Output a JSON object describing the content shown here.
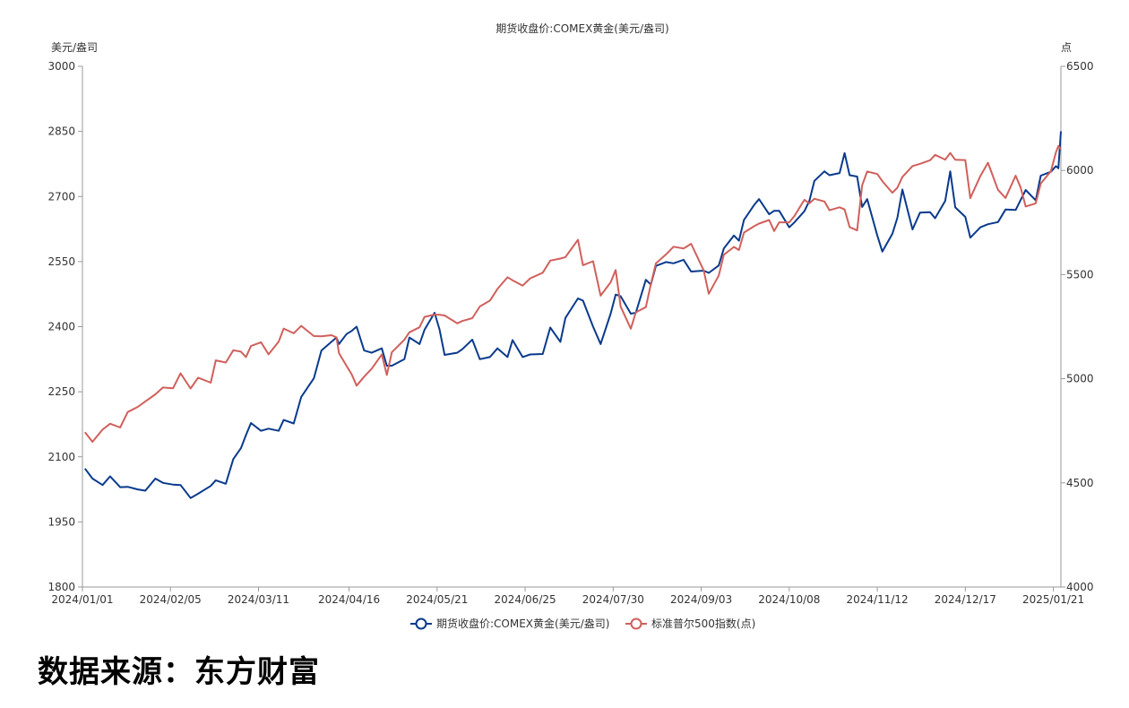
{
  "source_text": "数据来源：东方财富",
  "chart_data": {
    "type": "line",
    "title": "期货收盘价:COMEX黄金(美元/盎司)",
    "y_left_label": "美元/盎司",
    "y_right_label": "点",
    "y_left_range": [
      1800,
      3000
    ],
    "y_left_ticks": [
      "3000",
      "2850",
      "2700",
      "2550",
      "2400",
      "2250",
      "2100",
      "1950",
      "1800"
    ],
    "y_right_range": [
      4000,
      6500
    ],
    "y_right_ticks": [
      "6500",
      "6000",
      "5500",
      "5000",
      "4500",
      "4000"
    ],
    "x_range": [
      "2024-01-01",
      "2025-01-24"
    ],
    "x_ticks": [
      "2024/01/01",
      "2024/02/05",
      "2024/03/11",
      "2024/04/16",
      "2024/05/21",
      "2024/06/25",
      "2024/07/30",
      "2024/09/03",
      "2024/10/08",
      "2024/11/12",
      "2024/12/17",
      "2025/01/21"
    ],
    "grid": false,
    "legend_position": "bottom",
    "series": [
      {
        "name": "期货收盘价:COMEX黄金(美元/盎司)",
        "axis": "left",
        "color": "#0a3a8c",
        "points": [
          [
            "2024-01-02",
            2073
          ],
          [
            "2024-01-05",
            2050
          ],
          [
            "2024-01-09",
            2035
          ],
          [
            "2024-01-12",
            2055
          ],
          [
            "2024-01-16",
            2030
          ],
          [
            "2024-01-19",
            2031
          ],
          [
            "2024-01-23",
            2025
          ],
          [
            "2024-01-26",
            2022
          ],
          [
            "2024-01-30",
            2050
          ],
          [
            "2024-02-02",
            2040
          ],
          [
            "2024-02-06",
            2036
          ],
          [
            "2024-02-09",
            2035
          ],
          [
            "2024-02-13",
            2005
          ],
          [
            "2024-02-16",
            2015
          ],
          [
            "2024-02-21",
            2033
          ],
          [
            "2024-02-23",
            2046
          ],
          [
            "2024-02-27",
            2038
          ],
          [
            "2024-03-01",
            2095
          ],
          [
            "2024-03-04",
            2120
          ],
          [
            "2024-03-06",
            2150
          ],
          [
            "2024-03-08",
            2178
          ],
          [
            "2024-03-12",
            2160
          ],
          [
            "2024-03-15",
            2165
          ],
          [
            "2024-03-19",
            2160
          ],
          [
            "2024-03-21",
            2185
          ],
          [
            "2024-03-25",
            2177
          ],
          [
            "2024-03-28",
            2238
          ],
          [
            "2024-04-02",
            2281
          ],
          [
            "2024-04-05",
            2345
          ],
          [
            "2024-04-09",
            2365
          ],
          [
            "2024-04-11",
            2375
          ],
          [
            "2024-04-12",
            2360
          ],
          [
            "2024-04-15",
            2383
          ],
          [
            "2024-04-17",
            2390
          ],
          [
            "2024-04-19",
            2400
          ],
          [
            "2024-04-22",
            2345
          ],
          [
            "2024-04-25",
            2340
          ],
          [
            "2024-04-29",
            2350
          ],
          [
            "2024-05-01",
            2310
          ],
          [
            "2024-05-03",
            2310
          ],
          [
            "2024-05-08",
            2325
          ],
          [
            "2024-05-10",
            2375
          ],
          [
            "2024-05-14",
            2360
          ],
          [
            "2024-05-16",
            2393
          ],
          [
            "2024-05-20",
            2432
          ],
          [
            "2024-05-22",
            2393
          ],
          [
            "2024-05-24",
            2335
          ],
          [
            "2024-05-29",
            2340
          ],
          [
            "2024-05-31",
            2348
          ],
          [
            "2024-06-04",
            2370
          ],
          [
            "2024-06-07",
            2325
          ],
          [
            "2024-06-11",
            2330
          ],
          [
            "2024-06-14",
            2350
          ],
          [
            "2024-06-18",
            2330
          ],
          [
            "2024-06-20",
            2369
          ],
          [
            "2024-06-24",
            2330
          ],
          [
            "2024-06-27",
            2336
          ],
          [
            "2024-07-02",
            2337
          ],
          [
            "2024-07-05",
            2398
          ],
          [
            "2024-07-09",
            2365
          ],
          [
            "2024-07-11",
            2420
          ],
          [
            "2024-07-16",
            2465
          ],
          [
            "2024-07-18",
            2460
          ],
          [
            "2024-07-22",
            2400
          ],
          [
            "2024-07-25",
            2360
          ],
          [
            "2024-07-29",
            2430
          ],
          [
            "2024-07-31",
            2474
          ],
          [
            "2024-08-02",
            2470
          ],
          [
            "2024-08-06",
            2430
          ],
          [
            "2024-08-08",
            2432
          ],
          [
            "2024-08-12",
            2508
          ],
          [
            "2024-08-14",
            2497
          ],
          [
            "2024-08-16",
            2540
          ],
          [
            "2024-08-20",
            2549
          ],
          [
            "2024-08-23",
            2546
          ],
          [
            "2024-08-27",
            2554
          ],
          [
            "2024-08-30",
            2527
          ],
          [
            "2024-09-04",
            2529
          ],
          [
            "2024-09-06",
            2524
          ],
          [
            "2024-09-10",
            2541
          ],
          [
            "2024-09-12",
            2580
          ],
          [
            "2024-09-16",
            2610
          ],
          [
            "2024-09-18",
            2598
          ],
          [
            "2024-09-20",
            2646
          ],
          [
            "2024-09-24",
            2680
          ],
          [
            "2024-09-26",
            2694
          ],
          [
            "2024-09-30",
            2659
          ],
          [
            "2024-10-02",
            2667
          ],
          [
            "2024-10-04",
            2667
          ],
          [
            "2024-10-08",
            2629
          ],
          [
            "2024-10-10",
            2640
          ],
          [
            "2024-10-14",
            2666
          ],
          [
            "2024-10-16",
            2690
          ],
          [
            "2024-10-18",
            2736
          ],
          [
            "2024-10-22",
            2758
          ],
          [
            "2024-10-24",
            2749
          ],
          [
            "2024-10-28",
            2754
          ],
          [
            "2024-10-30",
            2800
          ],
          [
            "2024-11-01",
            2749
          ],
          [
            "2024-11-04",
            2746
          ],
          [
            "2024-11-06",
            2676
          ],
          [
            "2024-11-08",
            2694
          ],
          [
            "2024-11-12",
            2610
          ],
          [
            "2024-11-14",
            2573
          ],
          [
            "2024-11-18",
            2614
          ],
          [
            "2024-11-20",
            2651
          ],
          [
            "2024-11-22",
            2716
          ],
          [
            "2024-11-26",
            2624
          ],
          [
            "2024-11-29",
            2663
          ],
          [
            "2024-12-03",
            2664
          ],
          [
            "2024-12-05",
            2650
          ],
          [
            "2024-12-09",
            2690
          ],
          [
            "2024-12-11",
            2758
          ],
          [
            "2024-12-13",
            2675
          ],
          [
            "2024-12-17",
            2653
          ],
          [
            "2024-12-19",
            2605
          ],
          [
            "2024-12-23",
            2629
          ],
          [
            "2024-12-26",
            2636
          ],
          [
            "2024-12-30",
            2641
          ],
          [
            "2025-01-02",
            2670
          ],
          [
            "2025-01-06",
            2669
          ],
          [
            "2025-01-08",
            2692
          ],
          [
            "2025-01-10",
            2715
          ],
          [
            "2025-01-14",
            2691
          ],
          [
            "2025-01-16",
            2748
          ],
          [
            "2025-01-20",
            2757
          ],
          [
            "2025-01-22",
            2770
          ],
          [
            "2025-01-23",
            2765
          ],
          [
            "2025-01-24",
            2850
          ]
        ]
      },
      {
        "name": "标准普尔500指数(点)",
        "axis": "right",
        "color": "#d0605c",
        "points": [
          [
            "2024-01-02",
            4743
          ],
          [
            "2024-01-05",
            4697
          ],
          [
            "2024-01-09",
            4756
          ],
          [
            "2024-01-12",
            4784
          ],
          [
            "2024-01-16",
            4766
          ],
          [
            "2024-01-19",
            4840
          ],
          [
            "2024-01-23",
            4865
          ],
          [
            "2024-01-26",
            4891
          ],
          [
            "2024-01-30",
            4925
          ],
          [
            "2024-02-02",
            4958
          ],
          [
            "2024-02-06",
            4954
          ],
          [
            "2024-02-09",
            5026
          ],
          [
            "2024-02-13",
            4953
          ],
          [
            "2024-02-16",
            5005
          ],
          [
            "2024-02-21",
            4981
          ],
          [
            "2024-02-23",
            5088
          ],
          [
            "2024-02-27",
            5078
          ],
          [
            "2024-03-01",
            5137
          ],
          [
            "2024-03-04",
            5130
          ],
          [
            "2024-03-06",
            5104
          ],
          [
            "2024-03-08",
            5157
          ],
          [
            "2024-03-12",
            5175
          ],
          [
            "2024-03-15",
            5117
          ],
          [
            "2024-03-19",
            5178
          ],
          [
            "2024-03-21",
            5241
          ],
          [
            "2024-03-25",
            5218
          ],
          [
            "2024-03-28",
            5254
          ],
          [
            "2024-04-02",
            5205
          ],
          [
            "2024-04-05",
            5204
          ],
          [
            "2024-04-09",
            5209
          ],
          [
            "2024-04-11",
            5199
          ],
          [
            "2024-04-12",
            5123
          ],
          [
            "2024-04-15",
            5061
          ],
          [
            "2024-04-17",
            5022
          ],
          [
            "2024-04-19",
            4967
          ],
          [
            "2024-04-22",
            5010
          ],
          [
            "2024-04-25",
            5048
          ],
          [
            "2024-04-29",
            5116
          ],
          [
            "2024-05-01",
            5018
          ],
          [
            "2024-05-03",
            5127
          ],
          [
            "2024-05-08",
            5187
          ],
          [
            "2024-05-10",
            5223
          ],
          [
            "2024-05-14",
            5247
          ],
          [
            "2024-05-16",
            5297
          ],
          [
            "2024-05-20",
            5308
          ],
          [
            "2024-05-22",
            5307
          ],
          [
            "2024-05-24",
            5304
          ],
          [
            "2024-05-29",
            5266
          ],
          [
            "2024-05-31",
            5277
          ],
          [
            "2024-06-04",
            5291
          ],
          [
            "2024-06-07",
            5347
          ],
          [
            "2024-06-11",
            5375
          ],
          [
            "2024-06-14",
            5431
          ],
          [
            "2024-06-18",
            5487
          ],
          [
            "2024-06-20",
            5473
          ],
          [
            "2024-06-24",
            5447
          ],
          [
            "2024-06-27",
            5482
          ],
          [
            "2024-07-02",
            5509
          ],
          [
            "2024-07-05",
            5567
          ],
          [
            "2024-07-09",
            5577
          ],
          [
            "2024-07-11",
            5584
          ],
          [
            "2024-07-16",
            5667
          ],
          [
            "2024-07-18",
            5545
          ],
          [
            "2024-07-22",
            5564
          ],
          [
            "2024-07-25",
            5399
          ],
          [
            "2024-07-29",
            5463
          ],
          [
            "2024-07-31",
            5522
          ],
          [
            "2024-08-02",
            5346
          ],
          [
            "2024-08-06",
            5240
          ],
          [
            "2024-08-08",
            5319
          ],
          [
            "2024-08-12",
            5344
          ],
          [
            "2024-08-14",
            5455
          ],
          [
            "2024-08-16",
            5554
          ],
          [
            "2024-08-20",
            5597
          ],
          [
            "2024-08-23",
            5634
          ],
          [
            "2024-08-27",
            5625
          ],
          [
            "2024-08-30",
            5648
          ],
          [
            "2024-09-04",
            5520
          ],
          [
            "2024-09-06",
            5408
          ],
          [
            "2024-09-10",
            5496
          ],
          [
            "2024-09-12",
            5595
          ],
          [
            "2024-09-16",
            5633
          ],
          [
            "2024-09-18",
            5618
          ],
          [
            "2024-09-20",
            5702
          ],
          [
            "2024-09-24",
            5732
          ],
          [
            "2024-09-26",
            5745
          ],
          [
            "2024-09-30",
            5762
          ],
          [
            "2024-10-02",
            5709
          ],
          [
            "2024-10-04",
            5751
          ],
          [
            "2024-10-08",
            5751
          ],
          [
            "2024-10-10",
            5780
          ],
          [
            "2024-10-14",
            5859
          ],
          [
            "2024-10-16",
            5842
          ],
          [
            "2024-10-18",
            5864
          ],
          [
            "2024-10-22",
            5851
          ],
          [
            "2024-10-24",
            5809
          ],
          [
            "2024-10-28",
            5823
          ],
          [
            "2024-10-30",
            5813
          ],
          [
            "2024-11-01",
            5728
          ],
          [
            "2024-11-04",
            5712
          ],
          [
            "2024-11-06",
            5929
          ],
          [
            "2024-11-08",
            5995
          ],
          [
            "2024-11-12",
            5983
          ],
          [
            "2024-11-14",
            5949
          ],
          [
            "2024-11-18",
            5893
          ],
          [
            "2024-11-20",
            5917
          ],
          [
            "2024-11-22",
            5969
          ],
          [
            "2024-11-26",
            6021
          ],
          [
            "2024-11-29",
            6032
          ],
          [
            "2024-12-03",
            6049
          ],
          [
            "2024-12-05",
            6075
          ],
          [
            "2024-12-09",
            6052
          ],
          [
            "2024-12-11",
            6084
          ],
          [
            "2024-12-13",
            6051
          ],
          [
            "2024-12-17",
            6050
          ],
          [
            "2024-12-19",
            5867
          ],
          [
            "2024-12-23",
            5974
          ],
          [
            "2024-12-26",
            6037
          ],
          [
            "2024-12-30",
            5907
          ],
          [
            "2025-01-02",
            5868
          ],
          [
            "2025-01-06",
            5975
          ],
          [
            "2025-01-08",
            5918
          ],
          [
            "2025-01-10",
            5827
          ],
          [
            "2025-01-14",
            5842
          ],
          [
            "2025-01-16",
            5937
          ],
          [
            "2025-01-20",
            5996
          ],
          [
            "2025-01-22",
            6086
          ],
          [
            "2025-01-23",
            6118
          ],
          [
            "2025-01-24",
            6101
          ]
        ]
      }
    ]
  }
}
